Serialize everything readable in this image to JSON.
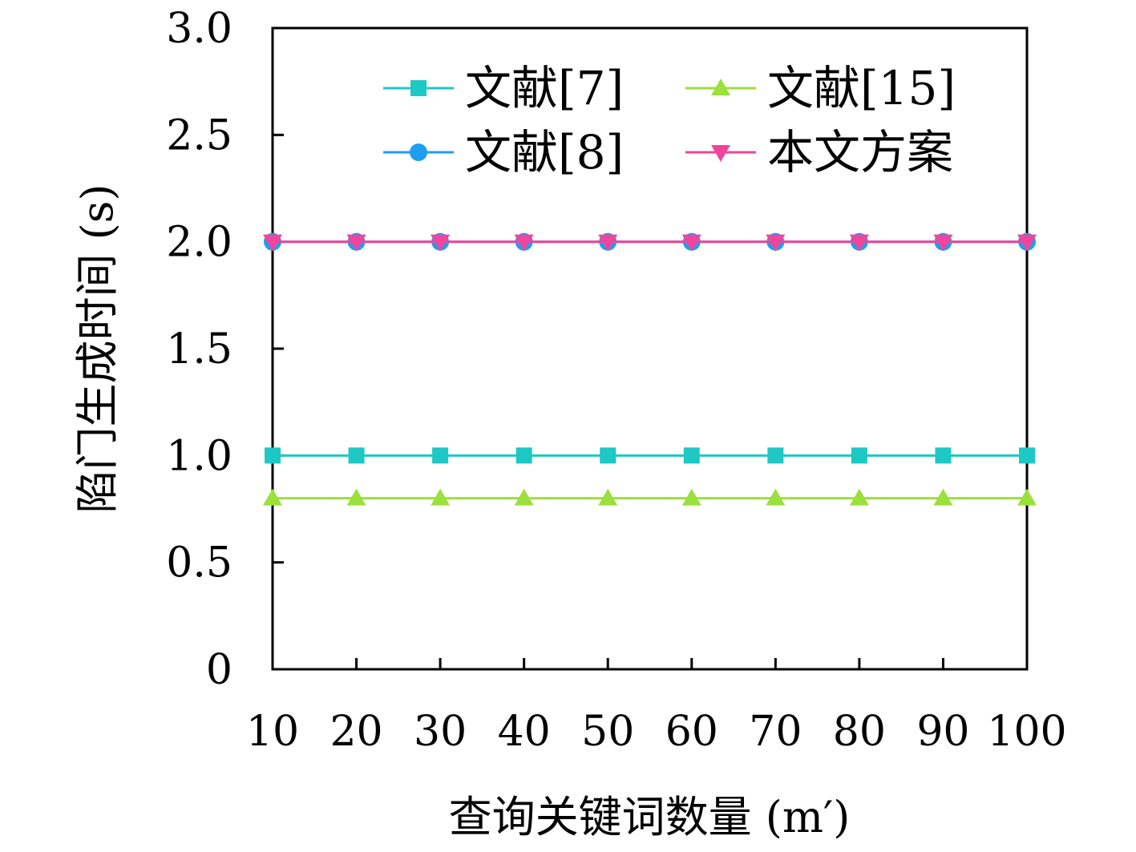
{
  "chart_data": {
    "type": "line",
    "xlabel": "查询关键词数量 (m′)",
    "ylabel": "陷门生成时间 (s)",
    "x": [
      10,
      20,
      30,
      40,
      50,
      60,
      70,
      80,
      90,
      100
    ],
    "xlim": [
      10,
      100
    ],
    "ylim": [
      0,
      3.0
    ],
    "y_ticks": [
      "0",
      "0.5",
      "1.0",
      "1.5",
      "2.0",
      "2.5",
      "3.0"
    ],
    "y_tick_values": [
      0,
      0.5,
      1.0,
      1.5,
      2.0,
      2.5,
      3.0
    ],
    "x_ticks": [
      "10",
      "20",
      "30",
      "40",
      "50",
      "60",
      "70",
      "80",
      "90",
      "100"
    ],
    "grid": false,
    "legend_position": "top",
    "series": [
      {
        "name": "文献[7]",
        "color": "#1ec8c4",
        "marker": "square",
        "values": [
          1.0,
          1.0,
          1.0,
          1.0,
          1.0,
          1.0,
          1.0,
          1.0,
          1.0,
          1.0
        ]
      },
      {
        "name": "文献[8]",
        "color": "#1e9ef0",
        "marker": "circle",
        "values": [
          2.0,
          2.0,
          2.0,
          2.0,
          2.0,
          2.0,
          2.0,
          2.0,
          2.0,
          2.0
        ]
      },
      {
        "name": "文献[15]",
        "color": "#9be03c",
        "marker": "triangle-up",
        "values": [
          0.8,
          0.8,
          0.8,
          0.8,
          0.8,
          0.8,
          0.8,
          0.8,
          0.8,
          0.8
        ]
      },
      {
        "name": "本文方案",
        "color": "#f0459c",
        "marker": "triangle-down",
        "values": [
          2.0,
          2.0,
          2.0,
          2.0,
          2.0,
          2.0,
          2.0,
          2.0,
          2.0,
          2.0
        ]
      }
    ]
  }
}
